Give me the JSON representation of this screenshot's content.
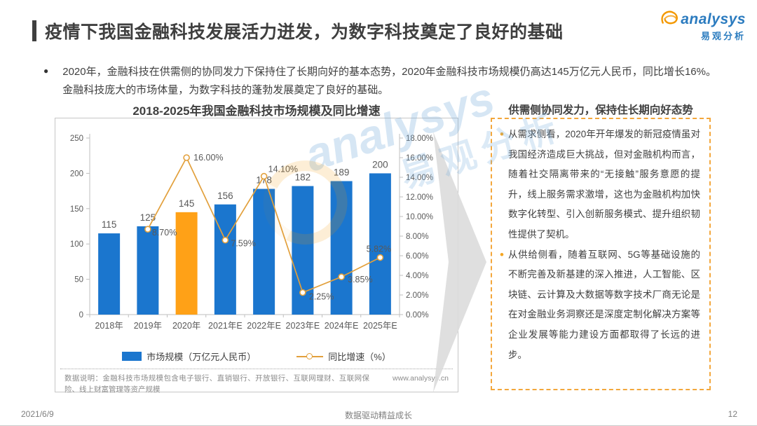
{
  "slide": {
    "title": "疫情下我国金融科技发展活力迸发，为数字科技奠定了良好的基础",
    "logo": {
      "brand": "analysys",
      "brand_cn": "易观分析"
    },
    "summary_bullet": "2020年，金融科技在供需侧的协同发力下保持住了长期向好的基本态势，2020年金融科技市场规模仍高达145万亿元人民币，同比增长16%。金融科技庞大的市场体量，为数字科技的蓬勃发展奠定了良好的基础。",
    "footer": {
      "date": "2021/6/9",
      "slogan": "数据驱动精益成长",
      "page_number": "12"
    }
  },
  "chart_panel": {
    "title": "2018-2025年我国金融科技市场规模及同比增速",
    "legend": [
      {
        "label": "市场规模（万亿元人民币）",
        "type": "bar",
        "color": "#1b76ce"
      },
      {
        "label": "同比增速（%）",
        "type": "line",
        "color": "#e2a03c"
      }
    ],
    "footnote": "数据说明：金融科技市场规模包含电子银行、直销银行、开放银行、互联网理财、互联网保险、线上财富管理等资产规模",
    "source_url": "www.analysys.cn"
  },
  "chart_data": {
    "type": "bar+line",
    "title": "2018-2025年我国金融科技市场规模及同比增速",
    "categories": [
      "2018年",
      "2019年",
      "2020年",
      "2021年E",
      "2022年E",
      "2023年E",
      "2024年E",
      "2025年E"
    ],
    "series": [
      {
        "name": "市场规模（万亿元人民币）",
        "type": "bar",
        "values": [
          115,
          125,
          145,
          156,
          178,
          182,
          189,
          200
        ],
        "color": "#1b76ce",
        "highlight_index": 2,
        "highlight_color": "#ffa117"
      },
      {
        "name": "同比增速（%）",
        "type": "line",
        "values": [
          null,
          8.7,
          16.0,
          7.59,
          14.1,
          2.25,
          3.85,
          5.82
        ],
        "labels": [
          null,
          "8.70%",
          "16.00%",
          "7.59%",
          "14.10%",
          "2.25%",
          "3.85%",
          "5.82%"
        ],
        "color": "#e2a03c",
        "marker": "open-circle"
      }
    ],
    "left_axis": {
      "min": 0,
      "max": 250,
      "step": 50
    },
    "right_axis": {
      "min": 0,
      "max": 18,
      "step": 2,
      "format": "0.00%"
    },
    "grid": false,
    "legend_position": "bottom"
  },
  "insight_panel": {
    "title": "供需侧协同发力，保持住长期向好态势",
    "bullets": [
      "从需求侧看，2020年开年爆发的新冠疫情虽对我国经济造成巨大挑战，但对金融机构而言，随着社交隔离带来的“无接触”服务意愿的提升，线上服务需求激增，这也为金融机构加快数字化转型、引入创新服务模式、提升组织韧性提供了契机。",
      "从供给侧看，随着互联网、5G等基础设施的不断完善及新基建的深入推进，人工智能、区块链、云计算及大数据等数字技术厂商无论是在对金融业务洞察还是深度定制化解决方案等企业发展等能力建设方面都取得了长远的进步。"
    ]
  },
  "watermark": {
    "brand": "analysys",
    "brand_cn": "易观分析"
  },
  "colors": {
    "bar_blue": "#1b76ce",
    "bar_highlight_orange": "#ffa117",
    "line_orange": "#e2a03c",
    "panel_dashed_border": "#f3a73c",
    "brand_blue": "#2b7bbf",
    "brand_orange": "#f39800",
    "axis_gray": "#bfbfbf",
    "text_gray": "#595959"
  }
}
